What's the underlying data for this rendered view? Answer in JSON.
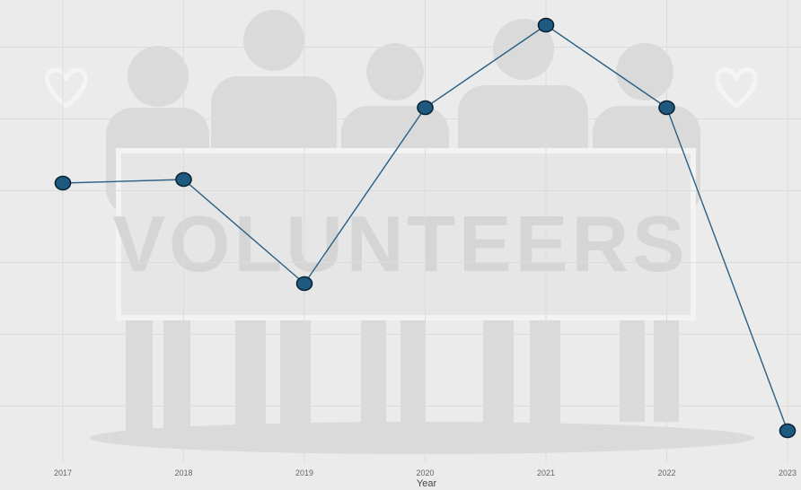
{
  "chart_data": {
    "type": "line",
    "title": "",
    "xlabel": "Year",
    "ylabel": "",
    "x": [
      "2017",
      "2018",
      "2019",
      "2020",
      "2021",
      "2022",
      "2023"
    ],
    "series": [
      {
        "values": [
          62,
          63,
          34,
          83,
          106,
          83,
          -7
        ]
      }
    ],
    "ylim": [
      -12,
      112
    ],
    "grid": true,
    "y_tick_labels_shown": false,
    "legend": "none",
    "colors": {
      "line": "#2a5f86",
      "marker_fill": "#1e5a80",
      "marker_edge": "#0a2233",
      "background": "#ebebeb",
      "grid": "#dcdcdc"
    }
  },
  "background_image": {
    "description_icon": "volunteers-illustration",
    "banner_text": "VOLUNTEERS"
  }
}
